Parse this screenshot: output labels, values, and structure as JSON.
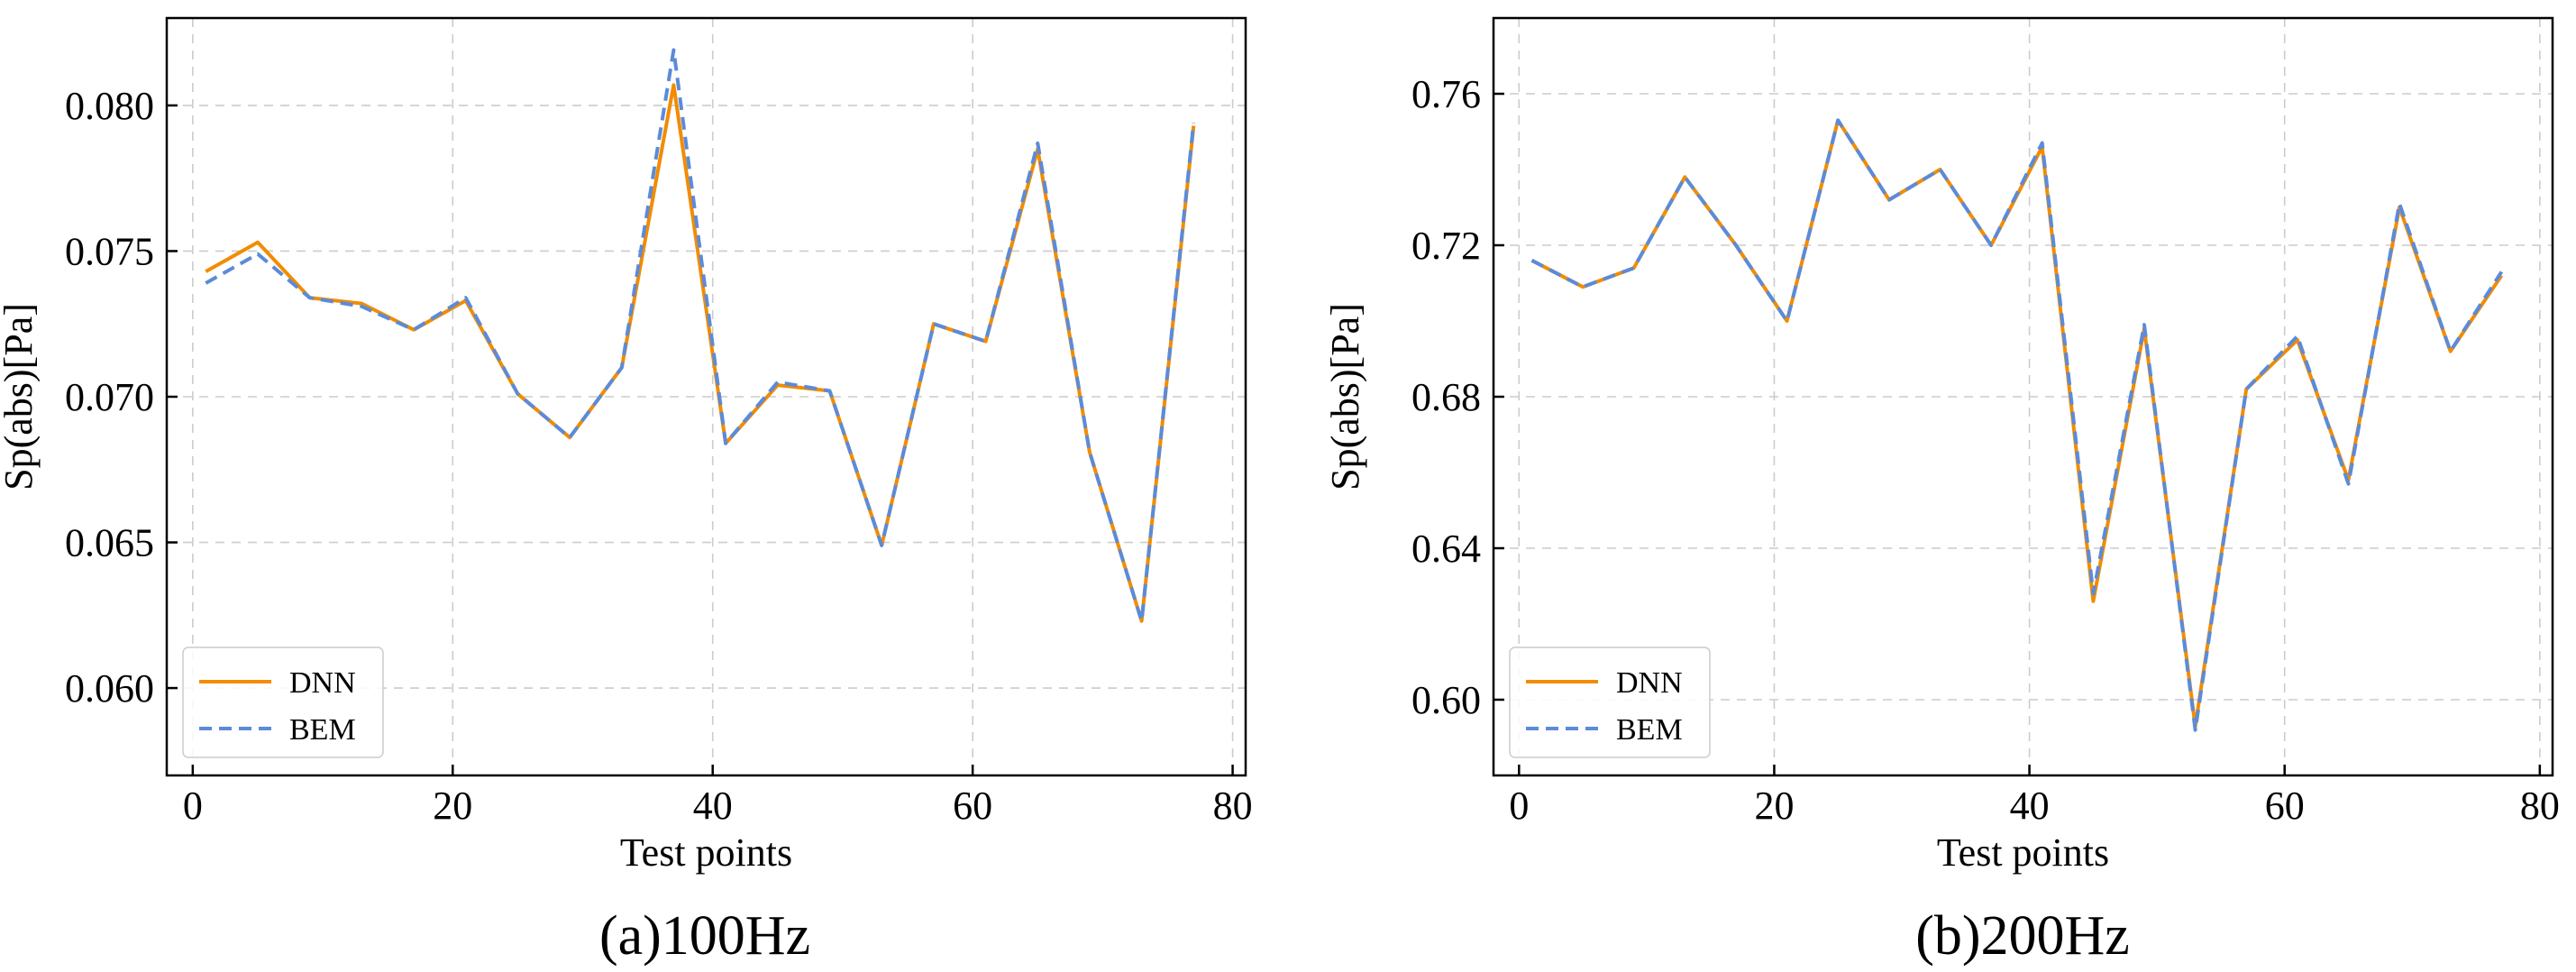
{
  "colors": {
    "dnn": "#F28C00",
    "bem": "#5B8BD9"
  },
  "chart_data": [
    {
      "type": "line",
      "caption": "(a)100Hz",
      "xlabel": "Test points",
      "ylabel": "Sp(abs)[Pa]",
      "xlim": [
        -2,
        81
      ],
      "ylim": [
        0.057,
        0.083
      ],
      "xticks": [
        0,
        20,
        40,
        60,
        80
      ],
      "xtick_labels": [
        "0",
        "20",
        "40",
        "60",
        "80"
      ],
      "yticks": [
        0.06,
        0.065,
        0.07,
        0.075,
        0.08
      ],
      "ytick_labels": [
        "0.060",
        "0.065",
        "0.070",
        "0.075",
        "0.080"
      ],
      "grid": true,
      "legend_position": "lower-left",
      "x": [
        1,
        5,
        9,
        13,
        17,
        21,
        25,
        29,
        33,
        37,
        41,
        45,
        49,
        53,
        57,
        61,
        65,
        69,
        73,
        77
      ],
      "series": [
        {
          "name": "DNN",
          "style": "solid",
          "values": [
            0.0743,
            0.0753,
            0.0734,
            0.0732,
            0.0723,
            0.0733,
            0.0701,
            0.0686,
            0.071,
            0.0807,
            0.0684,
            0.0704,
            0.0702,
            0.0649,
            0.0725,
            0.0719,
            0.0785,
            0.0681,
            0.0623,
            0.0793
          ]
        },
        {
          "name": "BEM",
          "style": "dashed",
          "values": [
            0.0739,
            0.0749,
            0.0734,
            0.0731,
            0.0723,
            0.0734,
            0.0701,
            0.0686,
            0.071,
            0.0819,
            0.0684,
            0.0705,
            0.0702,
            0.0649,
            0.0725,
            0.0719,
            0.0787,
            0.0681,
            0.0623,
            0.0794
          ]
        }
      ]
    },
    {
      "type": "line",
      "caption": "(b)200Hz",
      "xlabel": "Test points",
      "ylabel": "Sp(abs)[Pa]",
      "xlim": [
        -2,
        81
      ],
      "ylim": [
        0.58,
        0.78
      ],
      "xticks": [
        0,
        20,
        40,
        60,
        80
      ],
      "xtick_labels": [
        "0",
        "20",
        "40",
        "60",
        "80"
      ],
      "yticks": [
        0.6,
        0.64,
        0.68,
        0.72,
        0.76
      ],
      "ytick_labels": [
        "0.60",
        "0.64",
        "0.68",
        "0.72",
        "0.76"
      ],
      "grid": true,
      "legend_position": "lower-left",
      "x": [
        1,
        5,
        9,
        13,
        17,
        21,
        25,
        29,
        33,
        37,
        41,
        45,
        49,
        53,
        57,
        61,
        65,
        69,
        73,
        77
      ],
      "series": [
        {
          "name": "DNN",
          "style": "solid",
          "values": [
            0.716,
            0.709,
            0.714,
            0.738,
            0.72,
            0.7,
            0.753,
            0.732,
            0.74,
            0.72,
            0.746,
            0.626,
            0.698,
            0.593,
            0.682,
            0.695,
            0.658,
            0.73,
            0.692,
            0.712
          ]
        },
        {
          "name": "BEM",
          "style": "dashed",
          "values": [
            0.716,
            0.709,
            0.714,
            0.738,
            0.72,
            0.7,
            0.753,
            0.732,
            0.74,
            0.72,
            0.747,
            0.628,
            0.699,
            0.592,
            0.682,
            0.696,
            0.657,
            0.731,
            0.692,
            0.713
          ]
        }
      ]
    }
  ]
}
